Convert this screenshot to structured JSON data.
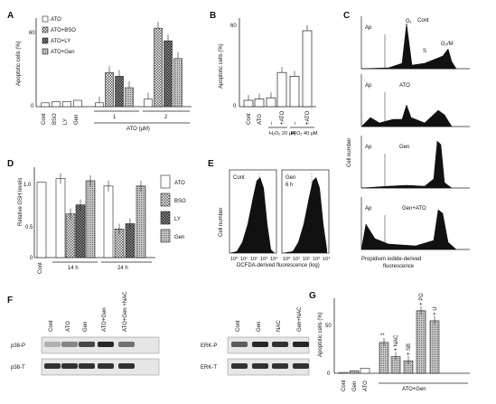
{
  "panels": {
    "A": {
      "label": "A",
      "ylabel": "Apoptotic cells (%)",
      "yticks": [
        "0",
        "60"
      ],
      "legend": [
        "ATO",
        "ATO+BSO",
        "ATO+LY",
        "ATO+Gen"
      ],
      "xlabels": [
        "Cont",
        "BSO",
        "LY",
        "Gen",
        "1",
        "2"
      ],
      "group_label": "ATO (μM)"
    },
    "B": {
      "label": "B",
      "ylabel": "Apoptotic cells (%)",
      "yticks": [
        "0",
        "60"
      ],
      "xlabels": [
        "Cont",
        "ATO",
        "–",
        "+ATO",
        "–",
        "+ATO"
      ],
      "groups": [
        "H₂O₂ 20 μM",
        "H₂O₂ 40 μM"
      ]
    },
    "C": {
      "label": "C",
      "ylabel": "Cell number",
      "xlabel_line1": "Propidium iodide-derived",
      "xlabel_line2": "fluorescence",
      "hists": [
        {
          "name": "Cont",
          "ap": "Ap",
          "peaks": [
            "G₁",
            "S",
            "G₂/M"
          ]
        },
        {
          "name": "ATO",
          "ap": "Ap"
        },
        {
          "name": "Gen",
          "ap": "Ap"
        },
        {
          "name": "Gen+ATO",
          "ap": "Ap"
        }
      ]
    },
    "D": {
      "label": "D",
      "ylabel": "Relative GSH levels",
      "yticks": [
        "0",
        "0.5",
        "1.0"
      ],
      "legend": [
        "ATO",
        "BSO",
        "LY",
        "Gen"
      ],
      "xlabels": [
        "Cont",
        "14 h",
        "24 h"
      ]
    },
    "E": {
      "label": "E",
      "ylabel": "Cell number",
      "xlabel": "DCFDA-derived fluorescence (log)",
      "subpanels": [
        {
          "name": "Cont"
        },
        {
          "name": "Gen",
          "time": "6 h"
        }
      ],
      "ticks": [
        "10⁰",
        "10¹",
        "10²",
        "10³",
        "10⁴"
      ]
    },
    "F": {
      "label": "F",
      "left_lanes": [
        "Cont",
        "ATO",
        "Gen",
        "ATO+Gen",
        "ATO+Gen +NAC"
      ],
      "left_rows": [
        "p38-P",
        "p38-T"
      ],
      "right_lanes": [
        "Cont",
        "Gen",
        "NAC",
        "Gen+NAC"
      ],
      "right_rows": [
        "ERK-P",
        "ERK-T"
      ]
    },
    "G": {
      "label": "G",
      "ylabel": "Apoptotic cells (%)",
      "yticks": [
        "0",
        "50"
      ],
      "xlabels": [
        "Cont",
        "Gen",
        "ATO"
      ],
      "group_label": "ATO+Gen",
      "bar_labels": [
        "**",
        "+ NAC",
        "+ SB",
        "+ PD",
        "+ U"
      ]
    }
  },
  "chart_data": [
    {
      "panel": "A",
      "type": "bar",
      "ylim": [
        0,
        70
      ],
      "categories": [
        "Cont",
        "BSO",
        "LY",
        "Gen",
        "1",
        "2"
      ],
      "series": [
        {
          "name": "ATO",
          "values": [
            3,
            4,
            4,
            5,
            3,
            6
          ]
        },
        {
          "name": "ATO+BSO",
          "values": [
            null,
            null,
            null,
            null,
            27,
            62
          ]
        },
        {
          "name": "ATO+LY",
          "values": [
            null,
            null,
            null,
            null,
            24,
            52
          ]
        },
        {
          "name": "ATO+Gen",
          "values": [
            null,
            null,
            null,
            null,
            15,
            38
          ]
        }
      ]
    },
    {
      "panel": "B",
      "type": "bar",
      "ylim": [
        0,
        70
      ],
      "categories": [
        "Cont",
        "ATO",
        "–",
        "+ATO",
        "–",
        "+ATO"
      ],
      "values": [
        5,
        6,
        7,
        27,
        24,
        60
      ]
    },
    {
      "panel": "D",
      "type": "bar",
      "ylim": [
        0,
        1.2
      ],
      "categories": [
        "Cont",
        "14 h",
        "24 h"
      ],
      "series": [
        {
          "name": "ATO",
          "values": [
            1.0,
            1.05,
            0.95
          ]
        },
        {
          "name": "BSO",
          "values": [
            null,
            0.58,
            0.38
          ]
        },
        {
          "name": "LY",
          "values": [
            null,
            0.7,
            0.45
          ]
        },
        {
          "name": "Gen",
          "values": [
            null,
            1.02,
            0.95
          ]
        }
      ]
    },
    {
      "panel": "G",
      "type": "bar",
      "ylim": [
        0,
        90
      ],
      "categories": [
        "Cont",
        "Gen",
        "ATO",
        "ATO+Gen",
        "+ NAC",
        "+ SB",
        "+ PD",
        "+ U"
      ],
      "values": [
        1,
        3,
        6,
        37,
        20,
        15,
        75,
        63
      ]
    }
  ]
}
